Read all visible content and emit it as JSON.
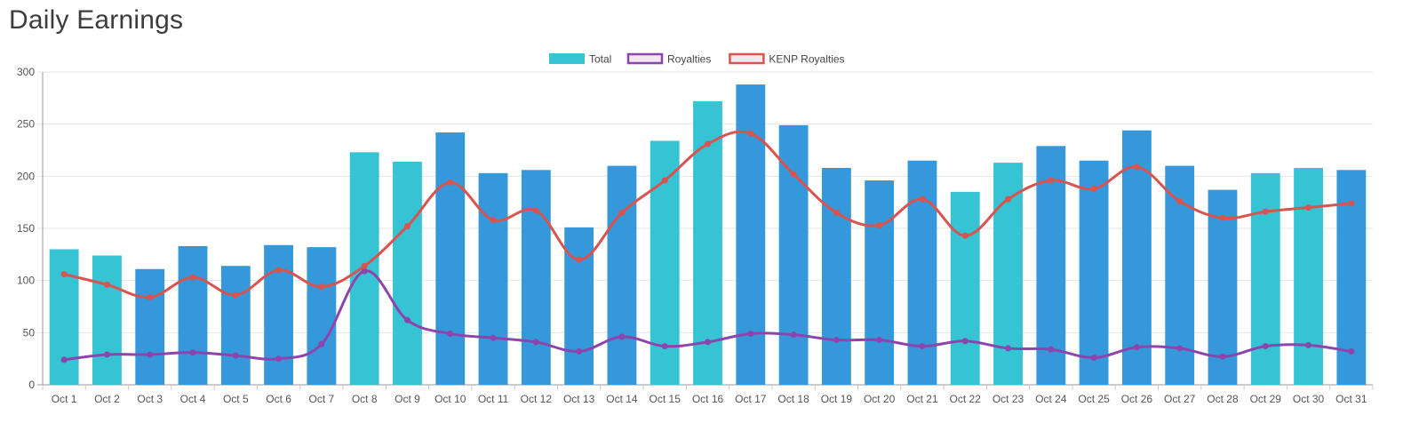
{
  "page": {
    "title": "Daily Earnings"
  },
  "chart_data": {
    "type": "bar",
    "title": "Daily Earnings",
    "categories": [
      "Oct 1",
      "Oct 2",
      "Oct 3",
      "Oct 4",
      "Oct 5",
      "Oct 6",
      "Oct 7",
      "Oct 8",
      "Oct 9",
      "Oct 10",
      "Oct 11",
      "Oct 12",
      "Oct 13",
      "Oct 14",
      "Oct 15",
      "Oct 16",
      "Oct 17",
      "Oct 18",
      "Oct 19",
      "Oct 20",
      "Oct 21",
      "Oct 22",
      "Oct 23",
      "Oct 24",
      "Oct 25",
      "Oct 26",
      "Oct 27",
      "Oct 28",
      "Oct 29",
      "Oct 30",
      "Oct 31"
    ],
    "ylim": [
      0,
      300
    ],
    "yticks": [
      0,
      50,
      100,
      150,
      200,
      250,
      300
    ],
    "grid": true,
    "legend_position": "top-center",
    "bar_colors": {
      "weekend": "#36C3D3",
      "weekday": "#3498DB"
    },
    "series": [
      {
        "name": "Total",
        "kind": "bar",
        "color": "#36C3D3",
        "values": [
          130,
          124,
          111,
          133,
          114,
          134,
          132,
          223,
          214,
          242,
          203,
          206,
          151,
          210,
          234,
          272,
          288,
          249,
          208,
          196,
          215,
          185,
          213,
          229,
          215,
          244,
          210,
          187,
          203,
          208,
          206
        ],
        "weekend": [
          true,
          true,
          false,
          false,
          false,
          false,
          false,
          true,
          true,
          false,
          false,
          false,
          false,
          false,
          true,
          true,
          false,
          false,
          false,
          false,
          false,
          true,
          true,
          false,
          false,
          false,
          false,
          false,
          true,
          true,
          false
        ]
      },
      {
        "name": "Royalties",
        "kind": "line",
        "color": "#8E44AD",
        "values": [
          24,
          29,
          29,
          31,
          28,
          25,
          39,
          109,
          62,
          49,
          45,
          41,
          32,
          46,
          37,
          41,
          49,
          48,
          43,
          43,
          37,
          42,
          35,
          34,
          26,
          36,
          35,
          27,
          37,
          38,
          32
        ]
      },
      {
        "name": "KENP Royalties",
        "kind": "line",
        "color": "#D9534F",
        "values": [
          106,
          96,
          84,
          103,
          86,
          110,
          94,
          114,
          152,
          194,
          158,
          167,
          120,
          165,
          196,
          231,
          241,
          202,
          165,
          153,
          178,
          143,
          178,
          196,
          188,
          209,
          176,
          160,
          166,
          170,
          174
        ]
      }
    ]
  }
}
